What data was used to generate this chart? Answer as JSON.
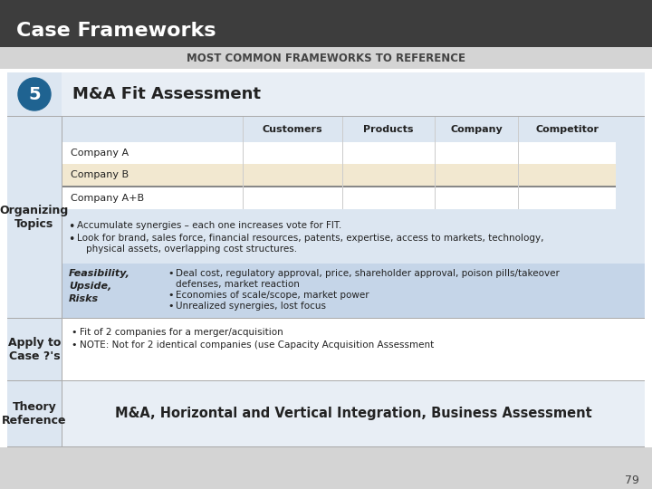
{
  "title": "Case Frameworks",
  "subtitle": "MOST COMMON FRAMEWORKS TO REFERENCE",
  "number": "5",
  "framework_title": "M&A Fit Assessment",
  "header_bg": "#3d3d3d",
  "subheader_bg": "#d4d4d4",
  "content_bg": "#dce6f1",
  "table_header_bg": "#dce6f1",
  "table_row1_bg": "#ffffff",
  "table_row2_bg": "#f2e8d0",
  "feasibility_bg": "#c5d5e8",
  "left_col_bg": "#dce6f1",
  "number_bg": "#1f6391",
  "title_section_bg": "#e8eef5",
  "theory_bg": "#e8eef5",
  "apply_bg": "#ffffff",
  "col_headers": [
    "Customers",
    "Products",
    "Company",
    "Competitor"
  ],
  "row_labels": [
    "Company A",
    "Company B",
    "Company A+B"
  ],
  "left_label_0": "Organizing\nTopics",
  "left_label_1": "Apply to\nCase ?'s",
  "left_label_2": "Theory\nReference",
  "bullet1": "Accumulate synergies – each one increases vote for FIT.",
  "bullet2": "Look for brand, sales force, financial resources, patents, expertise, access to markets, technology,",
  "bullet2b": "physical assets, overlapping cost structures.",
  "feasibility_label": "Feasibility,\nUpside,\nRisks",
  "feas_b1": "Deal cost, regulatory approval, price, shareholder approval, poison pills/takeover",
  "feas_b1b": "defenses, market reaction",
  "feas_b2": "Economies of scale/scope, market power",
  "feas_b3": "Unrealized synergies, lost focus",
  "apply_b1": "Fit of 2 companies for a merger/acquisition",
  "apply_b2": "NOTE: Not for 2 identical companies (use Capacity Acquisition Assessment",
  "theory_text": "M&A, Horizontal and Vertical Integration, Business Assessment",
  "page_number": "79",
  "white": "#ffffff",
  "dark_text": "#222222",
  "mid_text": "#444444",
  "sep_color": "#aaaaaa",
  "grid_color": "#cccccc",
  "thick_sep": "#888888"
}
